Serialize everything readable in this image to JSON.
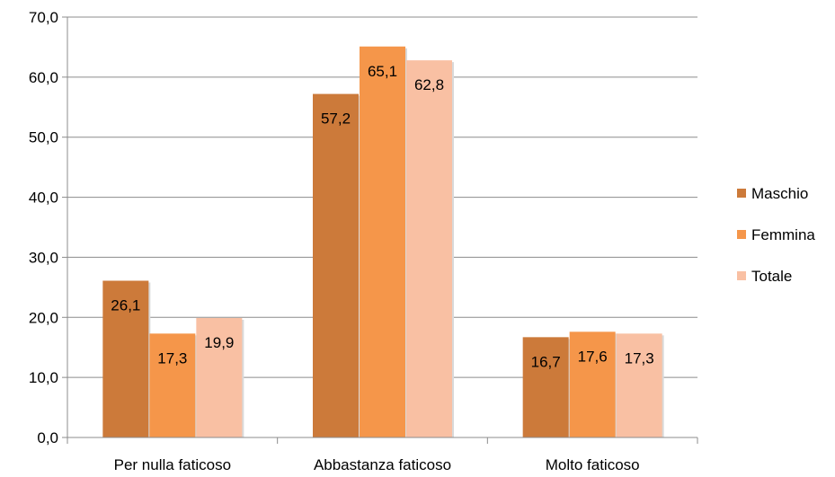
{
  "chart_data": {
    "type": "bar",
    "categories": [
      "Per nulla faticoso",
      "Abbastanza faticoso",
      "Molto faticoso"
    ],
    "series": [
      {
        "name": "Maschio",
        "values": [
          26.1,
          57.2,
          16.7
        ],
        "color": "#CC7A3A",
        "labels": [
          "26,1",
          "57,2",
          "16,7"
        ]
      },
      {
        "name": "Femmina",
        "values": [
          17.3,
          65.1,
          17.6
        ],
        "color": "#F5964A",
        "labels": [
          "17,3",
          "65,1",
          "17,6"
        ]
      },
      {
        "name": "Totale",
        "values": [
          19.9,
          62.8,
          17.3
        ],
        "color": "#F9C0A3",
        "labels": [
          "19,9",
          "62,8",
          "17,3"
        ]
      }
    ],
    "ylim": [
      0,
      70
    ],
    "yticks": [
      0,
      10,
      20,
      30,
      40,
      50,
      60,
      70
    ],
    "ytick_labels": [
      "0,0",
      "10,0",
      "20,0",
      "30,0",
      "40,0",
      "50,0",
      "60,0",
      "70,0"
    ],
    "grid": true,
    "legend_position": "right",
    "title": "",
    "xlabel": "",
    "ylabel": ""
  }
}
